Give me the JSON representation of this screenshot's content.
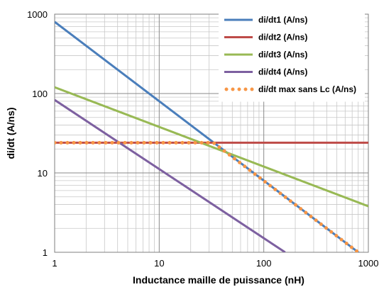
{
  "chart_data": {
    "type": "line",
    "title": "",
    "xlabel": "Inductance maille de puissance (nH)",
    "ylabel": "di/dt (A/ns)",
    "xscale": "log",
    "yscale": "log",
    "xlim": [
      1,
      1000
    ],
    "ylim": [
      1,
      1000
    ],
    "x_ticks": [
      "1",
      "10",
      "100",
      "1000"
    ],
    "y_ticks": [
      "1",
      "10",
      "100",
      "1000"
    ],
    "grid": true,
    "legend_position": "top-right",
    "series": [
      {
        "name": "di/dt1 (A/ns)",
        "color": "#4a7ebb",
        "style": "solid",
        "x": [
          1,
          1000
        ],
        "y": [
          800,
          0.8
        ]
      },
      {
        "name": "di/dt2 (A/ns)",
        "color": "#be4b48",
        "style": "solid",
        "x": [
          1,
          1000
        ],
        "y": [
          24,
          24
        ]
      },
      {
        "name": "di/dt3 (A/ns)",
        "color": "#98b954",
        "style": "solid",
        "x": [
          1,
          1000
        ],
        "y": [
          120,
          3.8
        ]
      },
      {
        "name": "di/dt4 (A/ns)",
        "color": "#7d60a0",
        "style": "solid",
        "x": [
          1,
          160
        ],
        "y": [
          83,
          1
        ]
      },
      {
        "name": "di/dt max sans Lc (A/ns)",
        "color": "#f79646",
        "style": "dotted",
        "x": [
          1,
          33,
          1000
        ],
        "y": [
          24,
          24,
          0.8
        ]
      }
    ]
  }
}
